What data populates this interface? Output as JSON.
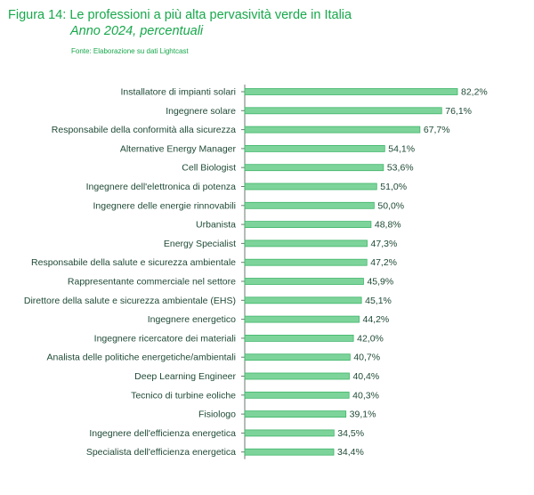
{
  "header": {
    "title": "Figura 14: Le professioni a più alta pervasività verde in Italia",
    "subtitle": "Anno 2024, percentuali",
    "source": "Fonte: Elaborazione su dati Lightcast"
  },
  "colors": {
    "accent": "#17a84b",
    "bar_fill": "#7dd49a",
    "bar_stroke": "#3fb56a",
    "axis": "#6c7a72",
    "text": "#1f4a36"
  },
  "chart_data": {
    "type": "bar",
    "orientation": "horizontal",
    "title": "Figura 14: Le professioni a più alta pervasività verde in Italia",
    "subtitle": "Anno 2024, percentuali",
    "unit": "%",
    "categories": [
      "Installatore di impianti solari",
      "Ingegnere solare",
      "Responsabile della conformità alla sicurezza",
      "Alternative Energy Manager",
      "Cell Biologist",
      "Ingegnere dell'elettronica di potenza",
      "Ingegnere delle energie rinnovabili",
      "Urbanista",
      "Energy Specialist",
      "Responsabile della salute e sicurezza ambientale",
      "Rappresentante commerciale nel settore",
      "Direttore della salute e sicurezza ambientale (EHS)",
      "Ingegnere energetico",
      "Ingegnere ricercatore dei materiali",
      "Analista delle politiche energetiche/ambientali",
      "Deep Learning Engineer",
      "Tecnico di turbine eoliche",
      "Fisiologo",
      "Ingegnere dell'efficienza energetica",
      "Specialista dell'efficienza energetica"
    ],
    "values": [
      82.2,
      76.1,
      67.7,
      54.1,
      53.6,
      51.0,
      50.0,
      48.8,
      47.3,
      47.2,
      45.9,
      45.1,
      44.2,
      42.0,
      40.7,
      40.4,
      40.3,
      39.1,
      34.5,
      34.4
    ],
    "value_labels": [
      "82,2%",
      "76,1%",
      "67,7%",
      "54,1%",
      "53,6%",
      "51,0%",
      "50,0%",
      "48,8%",
      "47,3%",
      "47,2%",
      "45,9%",
      "45,1%",
      "44,2%",
      "42,0%",
      "40,7%",
      "40,4%",
      "40,3%",
      "39,1%",
      "34,5%",
      "34,4%"
    ],
    "xlim": [
      0,
      82.2
    ],
    "grid": false,
    "legend": "none"
  }
}
